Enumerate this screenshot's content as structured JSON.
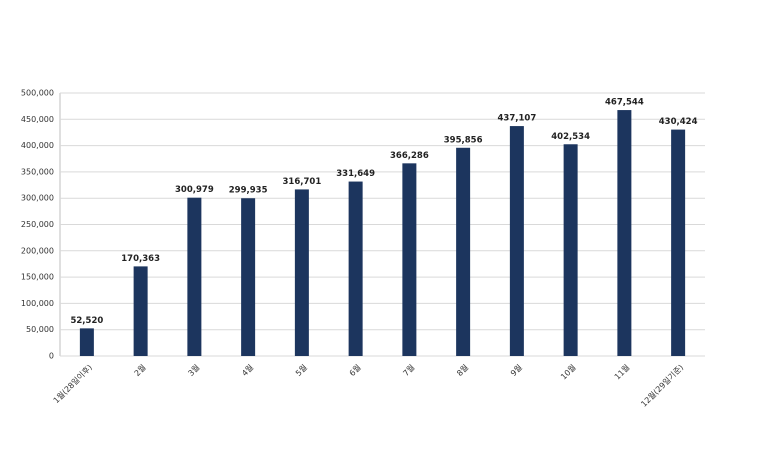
{
  "chart_data": {
    "type": "bar",
    "categories": [
      "1월(28일이후)",
      "2월",
      "3월",
      "4월",
      "5월",
      "6월",
      "7월",
      "8월",
      "9월",
      "10월",
      "11월",
      "12월(29일기준)"
    ],
    "values": [
      52520,
      170363,
      300979,
      299935,
      316701,
      331649,
      366286,
      395856,
      437107,
      402534,
      467544,
      430424
    ],
    "value_labels": [
      "52,520",
      "170,363",
      "300,979",
      "299,935",
      "316,701",
      "331,649",
      "366,286",
      "395,856",
      "437,107",
      "402,534",
      "467,544",
      "430,424"
    ],
    "color": "#1c355e",
    "ylim": [
      0,
      500000
    ],
    "yticks": [
      0,
      {
        "value": 50000,
        "label": "50,000"
      },
      {
        "value": 100000,
        "label": "100,000"
      },
      {
        "value": 150000,
        "label": "150,000"
      },
      {
        "value": 200000,
        "label": "200,000"
      },
      {
        "value": 250000,
        "label": "250,000"
      },
      {
        "value": 300000,
        "label": "300,000"
      },
      {
        "value": 350000,
        "label": "350,000"
      },
      {
        "value": 400000,
        "label": "400,000"
      },
      {
        "value": 450000,
        "label": "450,000"
      },
      {
        "value": 500000,
        "label": "500,000"
      }
    ],
    "grid": true
  }
}
